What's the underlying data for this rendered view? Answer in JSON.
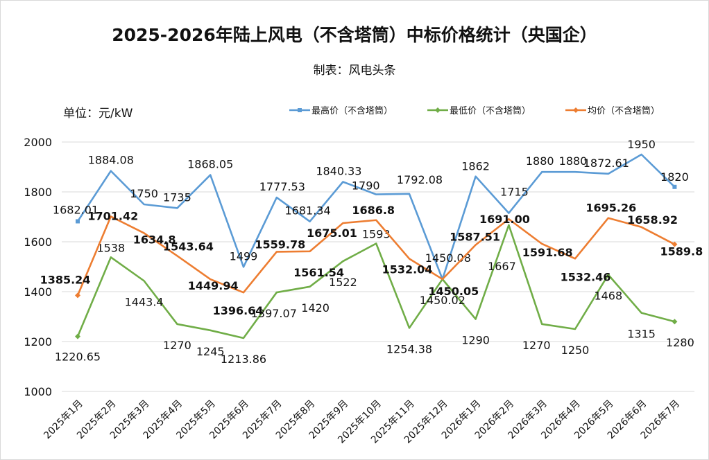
{
  "title": "2025-2026年陆上风电（不含塔筒）中标价格统计（央国企）",
  "subtitle": "制表：风电头条",
  "unit_label": "单位：元/kW",
  "chart_data": {
    "type": "line",
    "title": "2025-2026年陆上风电（不含塔筒）中标价格统计（央国企）",
    "xlabel": "",
    "ylabel": "单位：元/kW",
    "ylim": [
      1000,
      2000
    ],
    "y_ticks": [
      1000,
      1200,
      1400,
      1600,
      1800,
      2000
    ],
    "grid": true,
    "legend_position": "top-right",
    "categories": [
      "2025年1月",
      "2025年2月",
      "2025年3月",
      "2025年4月",
      "2025年5月",
      "2025年6月",
      "2025年7月",
      "2025年8月",
      "2025年9月",
      "2025年10月",
      "2025年11月",
      "2025年12月",
      "2026年1月",
      "2026年2月",
      "2026年3月",
      "2026年4月",
      "2026年5月",
      "2026年6月",
      "2026年7月"
    ],
    "series": [
      {
        "name": "最高价（不含塔筒）",
        "color": "#5b9bd5",
        "values": [
          1682.01,
          1884.08,
          1750,
          1735,
          1868.05,
          1499,
          1777.53,
          1681.34,
          1840.33,
          1790,
          1792.08,
          1450.08,
          1862,
          1715,
          1880,
          1880,
          1872.61,
          1950,
          1820
        ],
        "labels": [
          "1682.01",
          "1884.08",
          "1750",
          "1735",
          "1868.05",
          "1499",
          "1777.53",
          "1681.34",
          "1840.33",
          "1790",
          "1792.08",
          "1450.08",
          "1862",
          "1715",
          "1880",
          "1880",
          "1872.61",
          "1950",
          "1820"
        ]
      },
      {
        "name": "最低价（不含塔筒）",
        "color": "#70ad47",
        "values": [
          1220.65,
          1538,
          1443.4,
          1270,
          1245,
          1213.86,
          1397.07,
          1420,
          1522,
          1593,
          1254.38,
          1450.02,
          1290,
          1667,
          1270,
          1250,
          1468,
          1315,
          1280
        ],
        "labels": [
          "1220.65",
          "1538",
          "1443.4",
          "1270",
          "1245",
          "1213.86",
          "1397.07",
          "1420",
          "1522",
          "1593",
          "1254.38",
          "1450.02",
          "1290",
          "1667",
          "1270",
          "1250",
          "1468",
          "1315",
          "1280"
        ]
      },
      {
        "name": "均价（不含塔筒）",
        "color": "#ed7d31",
        "values": [
          1385.24,
          1701.42,
          1634.8,
          1543.64,
          1449.94,
          1396.64,
          1559.78,
          1561.54,
          1675.01,
          1686.8,
          1532.04,
          1450.05,
          1587.51,
          1691.0,
          1591.68,
          1532.46,
          1695.26,
          1658.92,
          1589.8
        ],
        "labels": [
          "1385.24",
          "1701.42",
          "1634.8",
          "1543.64",
          "1449.94",
          "1396.64",
          "1559.78",
          "1561.54",
          "1675.01",
          "1686.8",
          "1532.04",
          "1450.05",
          "1587.51",
          "1691.00",
          "1591.68",
          "1532.46",
          "1695.26",
          "1658.92",
          "1589.8"
        ]
      }
    ]
  }
}
